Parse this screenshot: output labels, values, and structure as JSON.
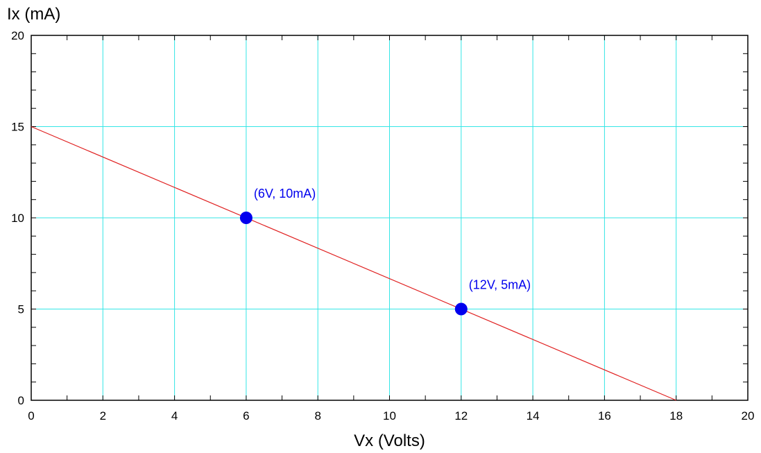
{
  "chart_data": {
    "type": "line",
    "title": "",
    "xlabel": "Vx (Volts)",
    "ylabel": "Ix (mA)",
    "xlim": [
      0,
      20
    ],
    "ylim": [
      0,
      20
    ],
    "x_major_ticks": [
      0,
      2,
      4,
      6,
      8,
      10,
      12,
      14,
      16,
      18,
      20
    ],
    "x_tick_labels": [
      "0",
      "2",
      "4",
      "6",
      "8",
      "10",
      "12",
      "14",
      "16",
      "18",
      "20"
    ],
    "y_major_ticks": [
      0,
      5,
      10,
      15,
      20
    ],
    "y_tick_labels": [
      "0",
      "5",
      "10",
      "15",
      "20"
    ],
    "x_minor_step": 1,
    "y_minor_step": 1,
    "grid": true,
    "series": [
      {
        "x": [
          0,
          18
        ],
        "y": [
          15,
          0
        ]
      }
    ],
    "points": [
      {
        "x": 6,
        "y": 10,
        "label": "(6V, 10mA)"
      },
      {
        "x": 12,
        "y": 5,
        "label": "(12V, 5mA)"
      }
    ],
    "colors": {
      "grid": "#33e6e6",
      "line": "#e02020",
      "point": "#0000ee",
      "axis": "#000000"
    }
  }
}
